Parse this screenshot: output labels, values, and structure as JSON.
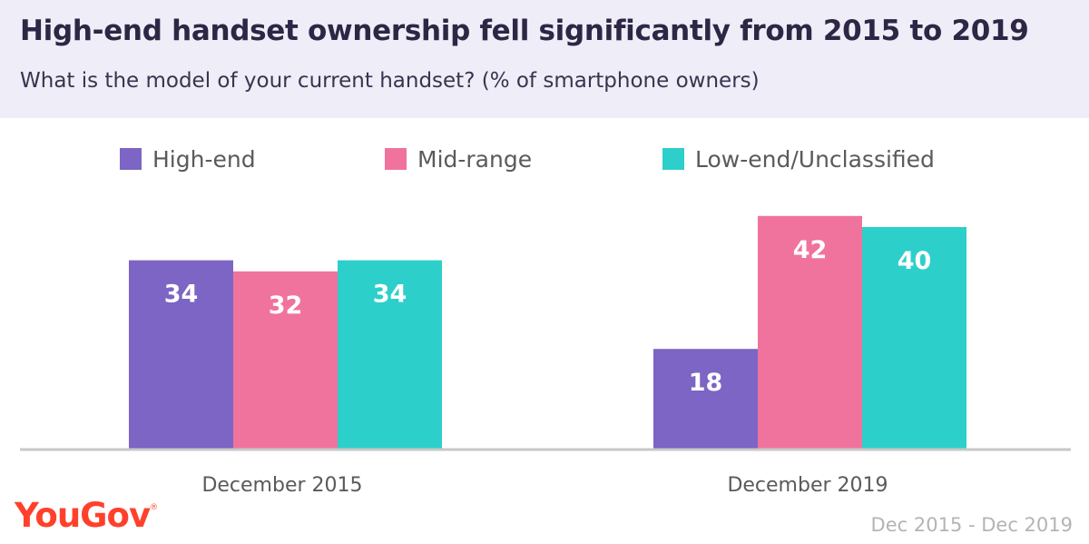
{
  "header": {
    "title": "High-end handset ownership fell significantly from 2015 to 2019",
    "subtitle": "What is the model of your current handset? (% of smartphone owners)"
  },
  "footer": {
    "logo_text": "YouGov",
    "date_range": "Dec 2015 - Dec 2019"
  },
  "colors": {
    "high_end": "#7c65c4",
    "mid_range": "#f0739d",
    "low_end": "#2dcfcb",
    "axis": "#c8c8c8",
    "header_bg": "#efedf7",
    "logo": "#ff412c"
  },
  "chart_data": {
    "type": "bar",
    "categories": [
      "December 2015",
      "December 2019"
    ],
    "series": [
      {
        "name": "High-end",
        "values": [
          34,
          18
        ],
        "color": "#7c65c4"
      },
      {
        "name": "Mid-range",
        "values": [
          32,
          42
        ],
        "color": "#f0739d"
      },
      {
        "name": "Low-end/Unclassified",
        "values": [
          34,
          40
        ],
        "color": "#2dcfcb"
      }
    ],
    "legend_position": "top",
    "grid": false,
    "data_labels": true
  }
}
